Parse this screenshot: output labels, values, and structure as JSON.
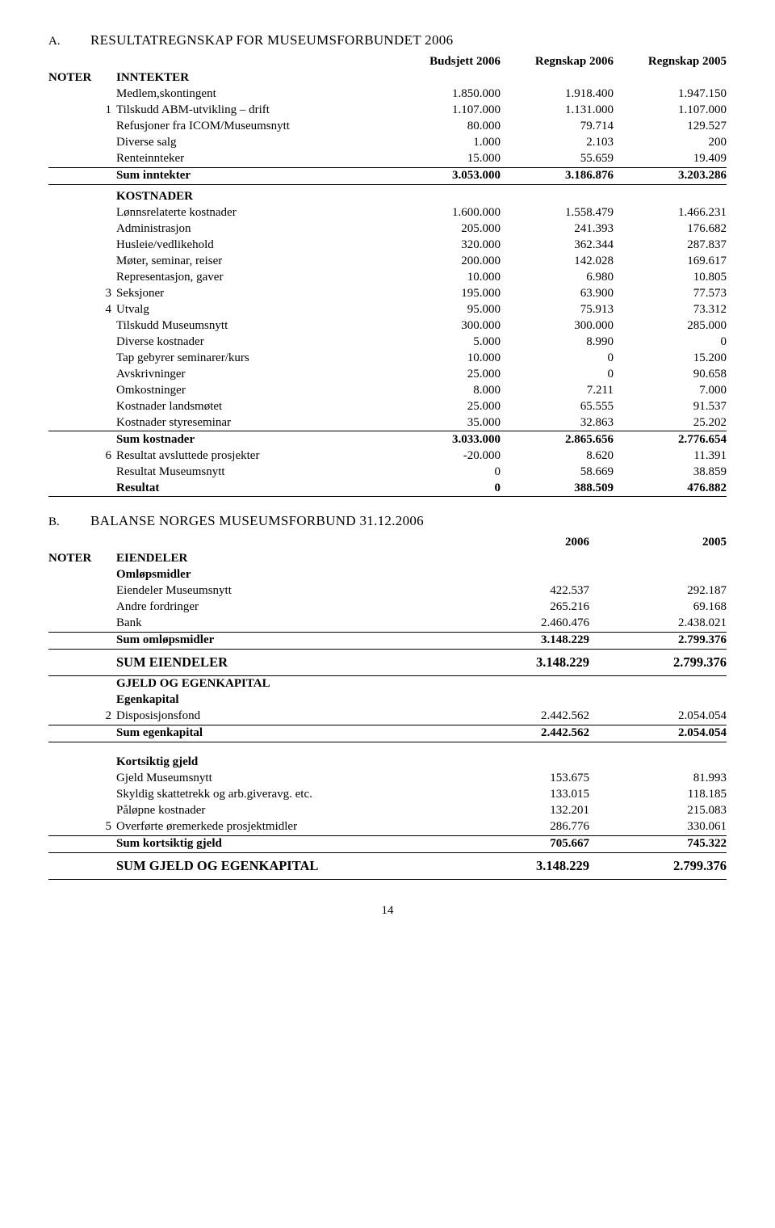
{
  "sectionA": {
    "prefix": "A.",
    "title": "RESULTATREGNSKAP FOR MUSEUMSFORBUNDET 2006",
    "headers": [
      "Budsjett 2006",
      "Regnskap 2006",
      "Regnskap 2005"
    ],
    "noterLabel": "NOTER",
    "groups": [
      {
        "header": "INNTEKTER",
        "rows": [
          {
            "note": "",
            "label": "Medlem,skontingent",
            "c": [
              "1.850.000",
              "1.918.400",
              "1.947.150"
            ]
          },
          {
            "note": "1",
            "label": "Tilskudd ABM-utvikling – drift",
            "c": [
              "1.107.000",
              "1.131.000",
              "1.107.000"
            ]
          },
          {
            "note": "",
            "label": "Refusjoner fra ICOM/Museumsnytt",
            "c": [
              "80.000",
              "79.714",
              "129.527"
            ]
          },
          {
            "note": "",
            "label": "Diverse salg",
            "c": [
              "1.000",
              "2.103",
              "200"
            ]
          },
          {
            "note": "",
            "label": "Renteinnteker",
            "c": [
              "15.000",
              "55.659",
              "19.409"
            ]
          }
        ],
        "sum": {
          "label": "Sum inntekter",
          "c": [
            "3.053.000",
            "3.186.876",
            "3.203.286"
          ]
        }
      },
      {
        "header": "KOSTNADER",
        "rows": [
          {
            "note": "",
            "label": "Lønnsrelaterte kostnader",
            "c": [
              "1.600.000",
              "1.558.479",
              "1.466.231"
            ]
          },
          {
            "note": "",
            "label": "Administrasjon",
            "c": [
              "205.000",
              "241.393",
              "176.682"
            ]
          },
          {
            "note": "",
            "label": "Husleie/vedlikehold",
            "c": [
              "320.000",
              "362.344",
              "287.837"
            ]
          },
          {
            "note": "",
            "label": "Møter, seminar, reiser",
            "c": [
              "200.000",
              "142.028",
              "169.617"
            ]
          },
          {
            "note": "",
            "label": "Representasjon, gaver",
            "c": [
              "10.000",
              "6.980",
              "10.805"
            ]
          },
          {
            "note": "3",
            "label": "Seksjoner",
            "c": [
              "195.000",
              "63.900",
              "77.573"
            ]
          },
          {
            "note": "4",
            "label": "Utvalg",
            "c": [
              "95.000",
              "75.913",
              "73.312"
            ]
          },
          {
            "note": "",
            "label": "Tilskudd Museumsnytt",
            "c": [
              "300.000",
              "300.000",
              "285.000"
            ]
          },
          {
            "note": "",
            "label": "Diverse kostnader",
            "c": [
              "5.000",
              "8.990",
              "0"
            ]
          },
          {
            "note": "",
            "label": "Tap gebyrer seminarer/kurs",
            "c": [
              "10.000",
              "0",
              "15.200"
            ]
          },
          {
            "note": "",
            "label": "Avskrivninger",
            "c": [
              "25.000",
              "0",
              "90.658"
            ]
          },
          {
            "note": "",
            "label": "Omkostninger",
            "c": [
              "8.000",
              "7.211",
              "7.000"
            ]
          },
          {
            "note": "",
            "label": "Kostnader landsmøtet",
            "c": [
              "25.000",
              "65.555",
              "91.537"
            ]
          },
          {
            "note": "",
            "label": "Kostnader styreseminar",
            "c": [
              "35.000",
              "32.863",
              "25.202"
            ]
          }
        ],
        "sum": {
          "label": "Sum kostnader",
          "c": [
            "3.033.000",
            "2.865.656",
            "2.776.654"
          ]
        },
        "post": [
          {
            "note": "6",
            "label": "Resultat avsluttede prosjekter",
            "c": [
              "-20.000",
              "8.620",
              "11.391"
            ]
          },
          {
            "note": "",
            "label": "Resultat Museumsnytt",
            "c": [
              "0",
              "58.669",
              "38.859"
            ]
          }
        ],
        "result": {
          "label": "Resultat",
          "c": [
            "0",
            "388.509",
            "476.882"
          ]
        }
      }
    ]
  },
  "sectionB": {
    "prefix": "B.",
    "title": "BALANSE NORGES MUSEUMSFORBUND 31.12.2006",
    "headers": [
      "2006",
      "2005"
    ],
    "noterLabel": "NOTER",
    "blocks": [
      {
        "headers": [
          "EIENDELER",
          "Omløpsmidler"
        ],
        "rows": [
          {
            "note": "",
            "label": "Eiendeler Museumsnytt",
            "c": [
              "422.537",
              "292.187"
            ]
          },
          {
            "note": "",
            "label": "Andre fordringer",
            "c": [
              "265.216",
              "69.168"
            ]
          },
          {
            "note": "",
            "label": "Bank",
            "c": [
              "2.460.476",
              "2.438.021"
            ]
          }
        ],
        "sum": {
          "label": "Sum omløpsmidler",
          "c": [
            "3.148.229",
            "2.799.376"
          ]
        }
      },
      {
        "big": {
          "label": "SUM EIENDELER",
          "c": [
            "3.148.229",
            "2.799.376"
          ]
        }
      },
      {
        "headers": [
          "GJELD OG EGENKAPITAL",
          "Egenkapital"
        ],
        "rows": [
          {
            "note": "2",
            "label": "Disposisjonsfond",
            "c": [
              "2.442.562",
              "2.054.054"
            ]
          }
        ],
        "sum": {
          "label": "Sum egenkapital",
          "c": [
            "2.442.562",
            "2.054.054"
          ]
        }
      },
      {
        "headers": [
          "Kortsiktig gjeld"
        ],
        "preSpacer": true,
        "rows": [
          {
            "note": "",
            "label": "Gjeld Museumsnytt",
            "c": [
              "153.675",
              "81.993"
            ]
          },
          {
            "note": "",
            "label": "Skyldig skattetrekk og arb.giveravg. etc.",
            "c": [
              "133.015",
              "118.185"
            ]
          },
          {
            "note": "",
            "label": "Påløpne kostnader",
            "c": [
              "132.201",
              "215.083"
            ]
          },
          {
            "note": "5",
            "label": "Overførte øremerkede prosjektmidler",
            "c": [
              "286.776",
              "330.061"
            ]
          }
        ],
        "sum": {
          "label": "Sum kortsiktig gjeld",
          "c": [
            "705.667",
            "745.322"
          ]
        }
      },
      {
        "big": {
          "label": "SUM GJELD OG EGENKAPITAL",
          "c": [
            "3.148.229",
            "2.799.376"
          ]
        }
      }
    ]
  },
  "pageNumber": "14"
}
